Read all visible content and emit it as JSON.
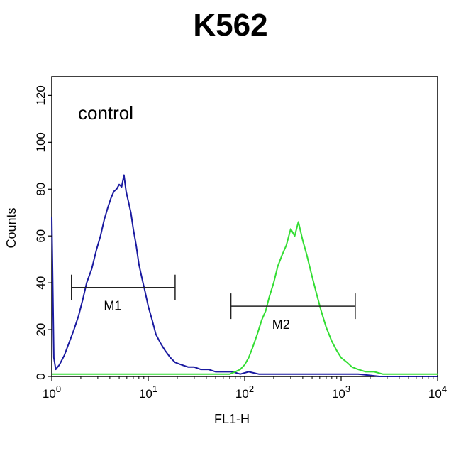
{
  "chart_data": {
    "type": "line",
    "title": "K562",
    "annotation": "control",
    "xlabel": "FL1-H",
    "ylabel": "Counts",
    "x_scale": "log",
    "xlim": [
      1,
      10000
    ],
    "ylim": [
      0,
      128
    ],
    "x_ticks": [
      {
        "value": 1,
        "base": "10",
        "exp": "0"
      },
      {
        "value": 10,
        "base": "10",
        "exp": "1"
      },
      {
        "value": 100,
        "base": "10",
        "exp": "2"
      },
      {
        "value": 1000,
        "base": "10",
        "exp": "3"
      },
      {
        "value": 10000,
        "base": "10",
        "exp": "4"
      }
    ],
    "y_ticks": [
      0,
      20,
      40,
      60,
      80,
      100,
      120
    ],
    "grid": false,
    "series": [
      {
        "color": "#1a1aa0",
        "x": [
          1,
          1.05,
          1.1,
          1.2,
          1.35,
          1.5,
          1.7,
          1.9,
          2.1,
          2.3,
          2.6,
          2.9,
          3.2,
          3.5,
          3.8,
          4.1,
          4.4,
          4.7,
          5.0,
          5.3,
          5.6,
          5.9,
          6.2,
          6.6,
          7.0,
          7.5,
          8.0,
          8.6,
          9.3,
          10,
          11,
          12,
          13.5,
          15,
          17,
          19,
          22,
          26,
          30,
          35,
          42,
          50,
          60,
          75,
          90,
          110,
          140,
          200,
          300,
          500,
          800,
          1000,
          1500,
          2500,
          4000,
          10000
        ],
        "y": [
          68,
          8,
          3,
          5,
          9,
          14,
          20,
          26,
          33,
          40,
          46,
          54,
          60,
          67,
          72,
          76,
          79,
          80,
          82,
          81,
          86,
          79,
          75,
          70,
          63,
          56,
          48,
          42,
          36,
          30,
          24,
          18,
          14,
          11,
          8,
          6,
          5,
          4,
          4,
          3,
          3,
          2,
          2,
          2,
          1,
          2,
          1,
          1,
          1,
          1,
          1,
          1,
          1,
          0,
          0,
          0
        ]
      },
      {
        "color": "#33dd33",
        "x": [
          1,
          10,
          50,
          70,
          80,
          90,
          100,
          110,
          120,
          135,
          150,
          165,
          180,
          200,
          220,
          245,
          270,
          300,
          330,
          360,
          400,
          440,
          490,
          550,
          620,
          700,
          800,
          900,
          1000,
          1150,
          1300,
          1500,
          1800,
          2200,
          2700,
          4000,
          10000
        ],
        "y": [
          1,
          1,
          1,
          1,
          2,
          3,
          5,
          8,
          12,
          18,
          24,
          28,
          34,
          40,
          47,
          52,
          56,
          63,
          60,
          66,
          58,
          52,
          44,
          36,
          28,
          21,
          15,
          11,
          8,
          6,
          4,
          3,
          2,
          2,
          1,
          1,
          1
        ]
      }
    ],
    "markers": [
      {
        "label": "M1",
        "x_start": 1.6,
        "x_end": 19,
        "y": 38
      },
      {
        "label": "M2",
        "x_start": 72,
        "x_end": 1400,
        "y": 30
      }
    ]
  }
}
